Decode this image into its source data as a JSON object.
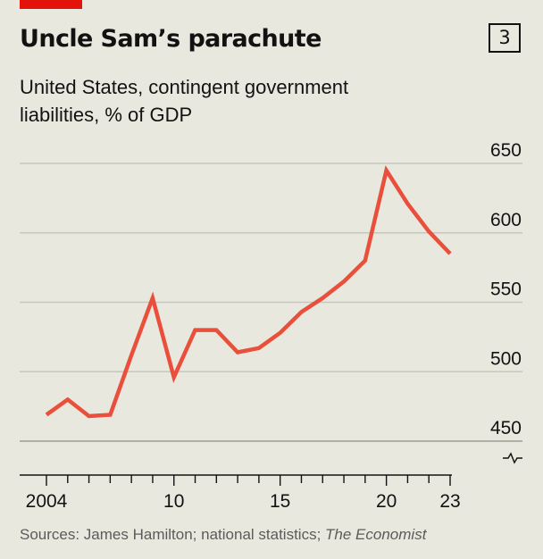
{
  "header": {
    "title": "Uncle Sam’s parachute",
    "chart_number": "3"
  },
  "subtitle": "United States, contingent government liabilities, % of GDP",
  "source": {
    "prefix": "Sources: James Hamilton; national statistics; ",
    "publication": "The Economist"
  },
  "colors": {
    "line": "#e94f3b",
    "accent": "#e3120b",
    "grid": "#c7c6bd",
    "background": "#e9e8df"
  },
  "chart_data": {
    "type": "line",
    "title": "Uncle Sam’s parachute",
    "subtitle": "United States, contingent government liabilities, % of GDP",
    "xlabel": "",
    "ylabel": "",
    "x": [
      2004,
      2005,
      2006,
      2007,
      2008,
      2009,
      2010,
      2011,
      2012,
      2013,
      2014,
      2015,
      2016,
      2017,
      2018,
      2019,
      2020,
      2021,
      2022,
      2023
    ],
    "series": [
      {
        "name": "",
        "values": [
          469,
          480,
          468,
          469,
          512,
          553,
          496,
          530,
          530,
          514,
          517,
          528,
          543,
          553,
          565,
          580,
          645,
          621,
          601,
          585
        ]
      }
    ],
    "ylim": [
      450,
      650
    ],
    "y_ticks": [
      450,
      500,
      550,
      600,
      650
    ],
    "y_tick_labels": [
      "450",
      "500",
      "550",
      "600",
      "650"
    ],
    "x_ticks": [
      2004,
      2010,
      2015,
      2020,
      2023
    ],
    "x_tick_labels": [
      "2004",
      "10",
      "15",
      "20",
      "23"
    ],
    "y_axis_broken": true,
    "grid": true,
    "y_axis_side": "right"
  }
}
